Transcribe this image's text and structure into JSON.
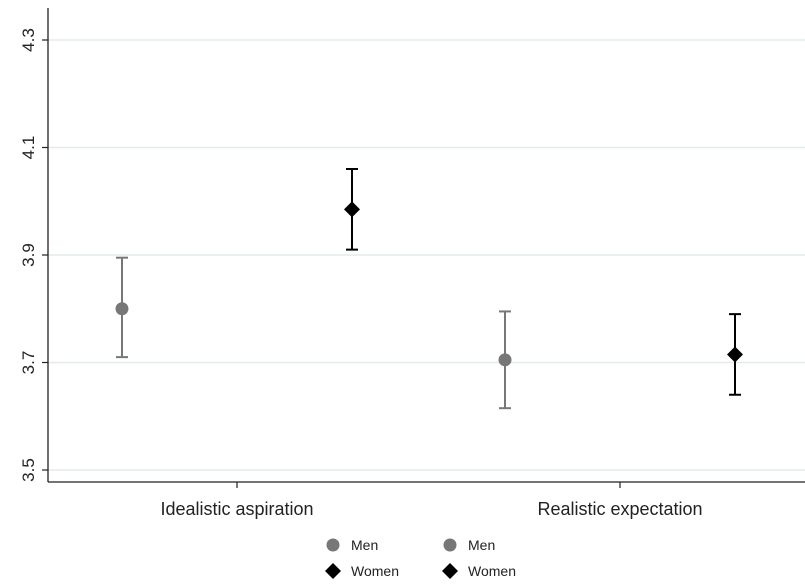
{
  "chart_data": {
    "type": "scatter",
    "title": "",
    "xlabel": "",
    "ylabel": "",
    "categories": [
      "Idealistic aspiration",
      "Realistic expectation"
    ],
    "ylim": [
      3.5,
      4.3
    ],
    "yticks": [
      "3.5",
      "3.7",
      "3.9",
      "4.1",
      "4.3"
    ],
    "grid": true,
    "series": [
      {
        "name": "Men",
        "color": "#777777",
        "marker": "circle",
        "values": [
          3.8,
          3.705
        ],
        "ci_low": [
          3.71,
          3.615
        ],
        "ci_high": [
          3.895,
          3.795
        ]
      },
      {
        "name": "Women",
        "color": "#000000",
        "marker": "diamond",
        "values": [
          3.985,
          3.715
        ],
        "ci_low": [
          3.91,
          3.64
        ],
        "ci_high": [
          4.06,
          3.79
        ]
      }
    ],
    "legend": {
      "placement": "bottom",
      "entries": [
        {
          "label": "Men",
          "marker": "circle",
          "color": "#777777"
        },
        {
          "label": "Men",
          "marker": "circle",
          "color": "#777777"
        },
        {
          "label": "Women",
          "marker": "diamond",
          "color": "#000000"
        },
        {
          "label": "Women",
          "marker": "diamond",
          "color": "#000000"
        }
      ]
    }
  }
}
